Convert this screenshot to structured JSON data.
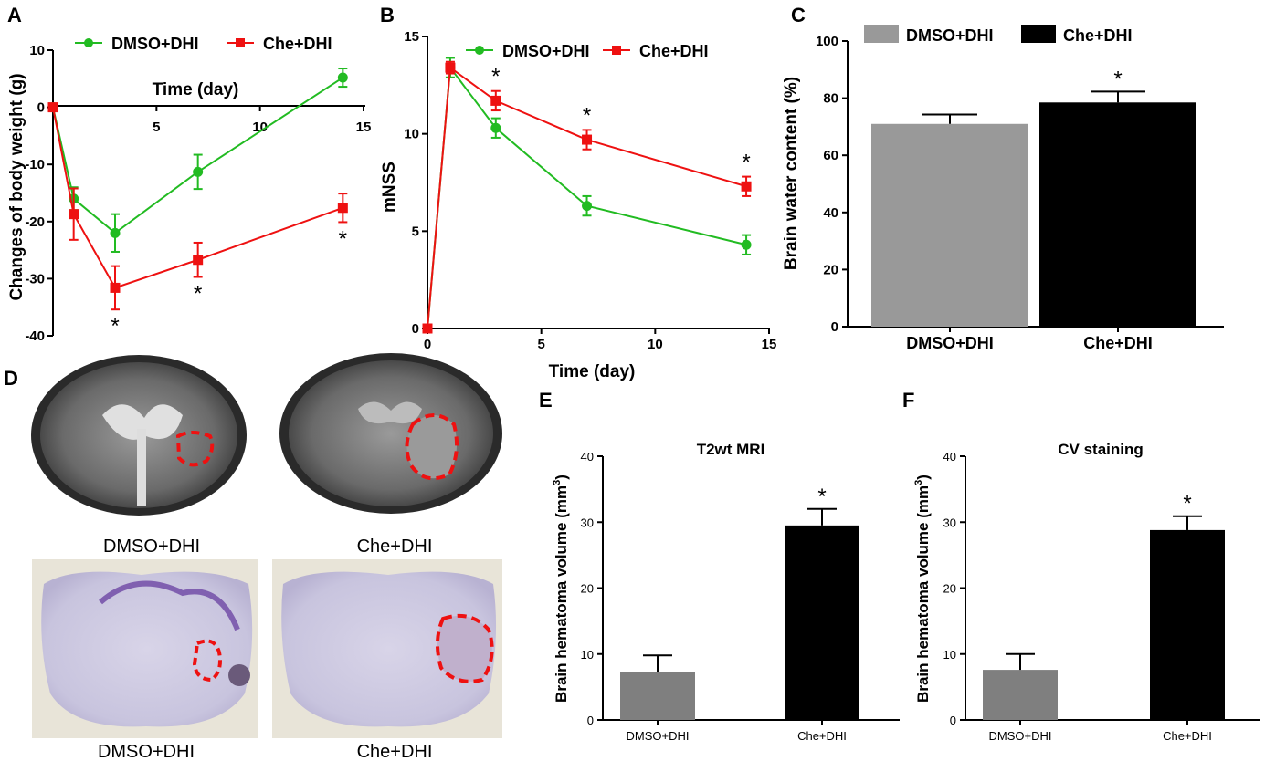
{
  "panels": {
    "A": "A",
    "B": "B",
    "C": "C",
    "D": "D",
    "E": "E",
    "F": "F"
  },
  "colors": {
    "dmso": "#22bb22",
    "che": "#ee1111",
    "bar_grey": "#999999",
    "bar_dark_grey": "#7f7f7f",
    "bar_black": "#000000",
    "outline": "#ee1111"
  },
  "legend": {
    "dmso": "DMSO+DHI",
    "che": "Che+DHI"
  },
  "chart_data": [
    {
      "id": "A",
      "type": "line",
      "ylabel": "Changes of body weight (g)",
      "xlabel": "Time (day)",
      "xlim": [
        0,
        15
      ],
      "ylim": [
        -40,
        10
      ],
      "xticks": [
        5,
        10,
        15
      ],
      "yticks": [
        10,
        0,
        -10,
        -20,
        -30,
        -40
      ],
      "x": [
        0,
        1,
        3,
        7,
        14
      ],
      "series": [
        {
          "name": "DMSO+DHI",
          "values": [
            0,
            -16,
            -22,
            -11.3,
            5.2
          ],
          "errors": [
            0,
            2,
            3.3,
            3,
            1.6
          ]
        },
        {
          "name": "Che+DHI",
          "values": [
            0,
            -18.7,
            -31.6,
            -26.7,
            -17.6
          ],
          "errors": [
            0,
            4.5,
            3.8,
            3,
            2.5
          ]
        }
      ],
      "annotations": [
        {
          "text": "*",
          "x": 3
        },
        {
          "text": "*",
          "x": 7
        },
        {
          "text": "*",
          "x": 14
        }
      ]
    },
    {
      "id": "B",
      "type": "line",
      "ylabel": "mNSS",
      "xlabel": "Time (day)",
      "xlim": [
        0,
        15
      ],
      "ylim": [
        0,
        15
      ],
      "xticks": [
        0,
        5,
        10,
        15
      ],
      "yticks": [
        0,
        5,
        10,
        15
      ],
      "x": [
        0,
        1,
        3,
        7,
        14
      ],
      "series": [
        {
          "name": "DMSO+DHI",
          "values": [
            0,
            13.4,
            10.3,
            6.3,
            4.3
          ],
          "errors": [
            0,
            0.5,
            0.5,
            0.5,
            0.5
          ]
        },
        {
          "name": "Che+DHI",
          "values": [
            0,
            13.4,
            11.7,
            9.7,
            7.3
          ],
          "errors": [
            0,
            0.3,
            0.5,
            0.5,
            0.5
          ]
        }
      ],
      "annotations": [
        {
          "text": "*",
          "x": 3
        },
        {
          "text": "*",
          "x": 7
        },
        {
          "text": "*",
          "x": 14
        }
      ]
    },
    {
      "id": "C",
      "type": "bar",
      "ylabel": "Brain water content (%)",
      "categories": [
        "DMSO+DHI",
        "Che+DHI"
      ],
      "values": [
        71,
        78.5
      ],
      "errors": [
        3.3,
        3.8
      ],
      "ylim": [
        0,
        100
      ],
      "yticks": [
        0,
        20,
        40,
        60,
        80,
        100
      ],
      "annotations": [
        {
          "text": "*",
          "category": "Che+DHI"
        }
      ]
    },
    {
      "id": "E",
      "type": "bar",
      "title": "T2wt MRI",
      "ylabel": "Brain hematoma volume (mm",
      "ylabel_sup": "3",
      "ylabel_end": ")",
      "categories": [
        "DMSO+DHI",
        "Che+DHI"
      ],
      "values": [
        7.3,
        29.5
      ],
      "errors": [
        2.5,
        2.5
      ],
      "ylim": [
        0,
        40
      ],
      "yticks": [
        0,
        10,
        20,
        30,
        40
      ],
      "annotations": [
        {
          "text": "*",
          "category": "Che+DHI"
        }
      ]
    },
    {
      "id": "F",
      "type": "bar",
      "title": "CV staining",
      "ylabel": "Brain hematoma volume (mm",
      "ylabel_sup": "3",
      "ylabel_end": ")",
      "categories": [
        "DMSO+DHI",
        "Che+DHI"
      ],
      "values": [
        7.6,
        28.8
      ],
      "errors": [
        2.4,
        2.1
      ],
      "ylim": [
        0,
        40
      ],
      "yticks": [
        0,
        10,
        20,
        30,
        40
      ],
      "annotations": [
        {
          "text": "*",
          "category": "Che+DHI"
        }
      ]
    }
  ],
  "images": {
    "mri_left_caption": "DMSO+DHI",
    "mri_right_caption": "Che+DHI",
    "cv_left_caption": "DMSO+DHI",
    "cv_right_caption": "Che+DHI"
  }
}
